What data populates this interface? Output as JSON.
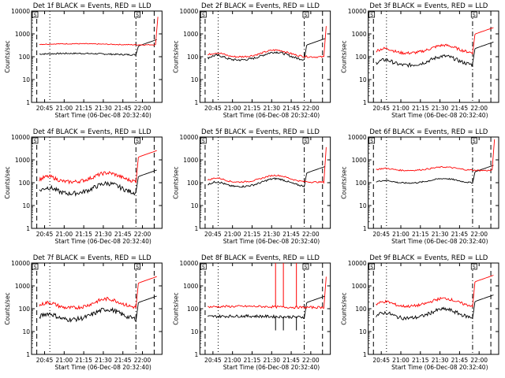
{
  "chart_data": [
    {
      "type": "line",
      "title": "Det 1f BLACK = Events, RED = LLD",
      "xlabel": "Start Time (06-Dec-08 20:32:40)",
      "ylabel": "Counts/sec",
      "yscale": "log",
      "ylim": [
        1,
        10000
      ],
      "x_tick_labels": [
        "20:45",
        "21:00",
        "21:15",
        "21:30",
        "21:45",
        "22:00"
      ],
      "y_tick_labels": [
        "1",
        "10",
        "100",
        "1000",
        "10000"
      ],
      "series": [
        {
          "name": "Events",
          "color": "#000000",
          "profile": "flat",
          "base": 130,
          "amp": 0.2,
          "noise": 0.03,
          "start": 0.06,
          "end": 0.8,
          "rise": 0.28
        },
        {
          "name": "LLD",
          "color": "#ff0000",
          "profile": "flat",
          "base": 350,
          "amp": 0.15,
          "noise": 0.02,
          "start": 0.06,
          "end": 0.95,
          "rise": 1.0
        }
      ]
    },
    {
      "type": "line",
      "title": "Det 2f BLACK = Events, RED = LLD",
      "xlabel": "Start Time (06-Dec-08 20:32:40)",
      "ylabel": "Counts/sec",
      "yscale": "log",
      "ylim": [
        1,
        10000
      ],
      "x_tick_labels": [
        "20:45",
        "21:00",
        "21:15",
        "21:30",
        "21:45",
        "22:00"
      ],
      "y_tick_labels": [
        "1",
        "10",
        "100",
        "1000",
        "10000"
      ],
      "series": [
        {
          "name": "Events",
          "color": "#000000",
          "profile": "dual",
          "base": 90,
          "amp": 0.35,
          "noise": 0.05,
          "start": 0.06,
          "end": 0.8,
          "rise": 0.45
        },
        {
          "name": "LLD",
          "color": "#ff0000",
          "profile": "dual",
          "base": 120,
          "amp": 0.3,
          "noise": 0.04,
          "start": 0.06,
          "end": 0.95,
          "rise": 1.05
        }
      ]
    },
    {
      "type": "line",
      "title": "Det 3f BLACK = Events, RED = LLD",
      "xlabel": "Start Time (06-Dec-08 20:32:40)",
      "ylabel": "Counts/sec",
      "yscale": "log",
      "ylim": [
        1,
        10000
      ],
      "x_tick_labels": [
        "20:45",
        "21:00",
        "21:15",
        "21:30",
        "21:45",
        "22:00"
      ],
      "y_tick_labels": [
        "1",
        "10",
        "100",
        "1000",
        "10000"
      ],
      "series": [
        {
          "name": "Events",
          "color": "#000000",
          "profile": "dual",
          "base": 55,
          "amp": 0.4,
          "noise": 0.08,
          "start": 0.06,
          "end": 0.8,
          "rise": 0.5
        },
        {
          "name": "LLD",
          "color": "#ff0000",
          "profile": "dual",
          "base": 180,
          "amp": 0.35,
          "noise": 0.06,
          "start": 0.06,
          "end": 0.8,
          "rise": 0.6
        }
      ]
    },
    {
      "type": "line",
      "title": "Det 4f BLACK = Events, RED = LLD",
      "xlabel": "Start Time (06-Dec-08 20:32:40)",
      "ylabel": "Counts/sec",
      "yscale": "log",
      "ylim": [
        1,
        10000
      ],
      "x_tick_labels": [
        "20:45",
        "21:00",
        "21:15",
        "21:30",
        "21:45",
        "22:00"
      ],
      "y_tick_labels": [
        "1",
        "10",
        "100",
        "1000",
        "10000"
      ],
      "series": [
        {
          "name": "Events",
          "color": "#000000",
          "profile": "dual",
          "base": 45,
          "amp": 0.45,
          "noise": 0.1,
          "start": 0.06,
          "end": 0.8,
          "rise": 0.5
        },
        {
          "name": "LLD",
          "color": "#ff0000",
          "profile": "dual",
          "base": 140,
          "amp": 0.4,
          "noise": 0.08,
          "start": 0.06,
          "end": 0.8,
          "rise": 0.8
        }
      ]
    },
    {
      "type": "line",
      "title": "Det 5f BLACK = Events, RED = LLD",
      "xlabel": "Start Time (06-Dec-08 20:32:40)",
      "ylabel": "Counts/sec",
      "yscale": "log",
      "ylim": [
        1,
        10000
      ],
      "x_tick_labels": [
        "20:45",
        "21:00",
        "21:15",
        "21:30",
        "21:45",
        "22:00"
      ],
      "y_tick_labels": [
        "1",
        "10",
        "100",
        "1000",
        "10000"
      ],
      "series": [
        {
          "name": "Events",
          "color": "#000000",
          "profile": "dual",
          "base": 85,
          "amp": 0.35,
          "noise": 0.04,
          "start": 0.06,
          "end": 0.8,
          "rise": 0.4
        },
        {
          "name": "LLD",
          "color": "#ff0000",
          "profile": "dual",
          "base": 130,
          "amp": 0.3,
          "noise": 0.03,
          "start": 0.06,
          "end": 0.95,
          "rise": 1.2
        }
      ]
    },
    {
      "type": "line",
      "title": "Det 6f BLACK = Events, RED = LLD",
      "xlabel": "Start Time (06-Dec-08 20:32:40)",
      "ylabel": "Counts/sec",
      "yscale": "log",
      "ylim": [
        1,
        10000
      ],
      "x_tick_labels": [
        "20:45",
        "21:00",
        "21:15",
        "21:30",
        "21:45",
        "22:00"
      ],
      "y_tick_labels": [
        "1",
        "10",
        "100",
        "1000",
        "10000"
      ],
      "series": [
        {
          "name": "Events",
          "color": "#000000",
          "profile": "dual",
          "base": 110,
          "amp": 0.2,
          "noise": 0.03,
          "start": 0.06,
          "end": 0.8,
          "rise": 0.35
        },
        {
          "name": "LLD",
          "color": "#ff0000",
          "profile": "dual",
          "base": 380,
          "amp": 0.15,
          "noise": 0.03,
          "start": 0.06,
          "end": 0.95,
          "rise": 1.1
        }
      ]
    },
    {
      "type": "line",
      "title": "Det 7f BLACK = Events, RED = LLD",
      "xlabel": "Start Time (06-Dec-08 20:32:40)",
      "ylabel": "Counts/sec",
      "yscale": "log",
      "ylim": [
        1,
        10000
      ],
      "x_tick_labels": [
        "20:45",
        "21:00",
        "21:15",
        "21:30",
        "21:45",
        "22:00"
      ],
      "y_tick_labels": [
        "1",
        "10",
        "100",
        "1000",
        "10000"
      ],
      "series": [
        {
          "name": "Events",
          "color": "#000000",
          "profile": "dual",
          "base": 45,
          "amp": 0.45,
          "noise": 0.1,
          "start": 0.06,
          "end": 0.8,
          "rise": 0.5
        },
        {
          "name": "LLD",
          "color": "#ff0000",
          "profile": "dual",
          "base": 140,
          "amp": 0.4,
          "noise": 0.08,
          "start": 0.06,
          "end": 0.8,
          "rise": 0.8
        }
      ]
    },
    {
      "type": "line",
      "title": "Det 8f BLACK = Events, RED = LLD",
      "xlabel": "Start Time (06-Dec-08 20:32:40)",
      "ylabel": "Counts/sec",
      "yscale": "log",
      "ylim": [
        1,
        10000
      ],
      "x_tick_labels": [
        "20:45",
        "21:00",
        "21:15",
        "21:30",
        "21:45",
        "22:00"
      ],
      "y_tick_labels": [
        "1",
        "10",
        "100",
        "1000",
        "10000"
      ],
      "series": [
        {
          "name": "Events",
          "color": "#000000",
          "profile": "flat",
          "base": 45,
          "amp": 0.15,
          "noise": 0.06,
          "start": 0.06,
          "end": 0.8,
          "rise": 0.5,
          "spikes": "down"
        },
        {
          "name": "LLD",
          "color": "#ff0000",
          "profile": "flat",
          "base": 120,
          "amp": 0.15,
          "noise": 0.05,
          "start": 0.06,
          "end": 0.95,
          "rise": 1.1,
          "spikes": "up"
        }
      ]
    },
    {
      "type": "line",
      "title": "Det 9f BLACK = Events, RED = LLD",
      "xlabel": "Start Time (06-Dec-08 20:32:40)",
      "ylabel": "Counts/sec",
      "yscale": "log",
      "ylim": [
        1,
        10000
      ],
      "x_tick_labels": [
        "20:45",
        "21:00",
        "21:15",
        "21:30",
        "21:45",
        "22:00"
      ],
      "y_tick_labels": [
        "1",
        "10",
        "100",
        "1000",
        "10000"
      ],
      "series": [
        {
          "name": "Events",
          "color": "#000000",
          "profile": "dual",
          "base": 50,
          "amp": 0.4,
          "noise": 0.08,
          "start": 0.06,
          "end": 0.8,
          "rise": 0.5
        },
        {
          "name": "LLD",
          "color": "#ff0000",
          "profile": "dual",
          "base": 160,
          "amp": 0.35,
          "noise": 0.06,
          "start": 0.06,
          "end": 0.8,
          "rise": 0.8
        }
      ]
    }
  ],
  "markers": {
    "badge_label": "S"
  }
}
